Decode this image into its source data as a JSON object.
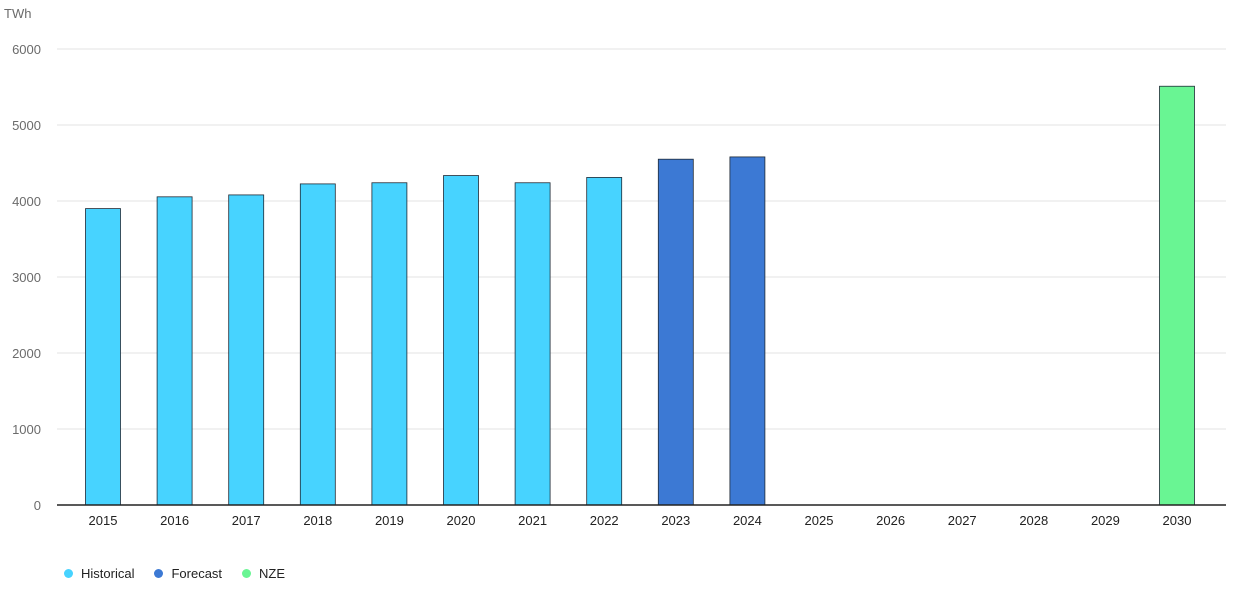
{
  "chart_data": {
    "type": "bar",
    "yunit": "TWh",
    "categories": [
      "2015",
      "2016",
      "2017",
      "2018",
      "2019",
      "2020",
      "2021",
      "2022",
      "2023",
      "2024",
      "2025",
      "2026",
      "2027",
      "2028",
      "2029",
      "2030"
    ],
    "series": [
      {
        "name": "Historical",
        "color": "#47d3ff",
        "values": [
          3900,
          4055,
          4080,
          4225,
          4240,
          4335,
          4240,
          4310,
          null,
          null,
          null,
          null,
          null,
          null,
          null,
          null
        ]
      },
      {
        "name": "Forecast",
        "color": "#3c79d4",
        "values": [
          null,
          null,
          null,
          null,
          null,
          null,
          null,
          null,
          4550,
          4580,
          null,
          null,
          null,
          null,
          null,
          null
        ]
      },
      {
        "name": "NZE",
        "color": "#69f593",
        "values": [
          null,
          null,
          null,
          null,
          null,
          null,
          null,
          null,
          null,
          null,
          null,
          null,
          null,
          null,
          null,
          5510
        ]
      }
    ],
    "ylim": [
      0,
      6000
    ],
    "yticks": [
      0,
      1000,
      2000,
      3000,
      4000,
      5000,
      6000
    ],
    "grid": true,
    "legend_position": "bottom-left"
  }
}
